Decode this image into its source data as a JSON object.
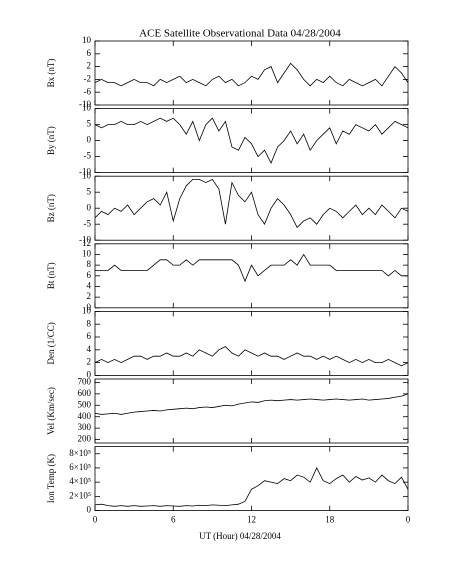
{
  "chart_data": {
    "type": "line",
    "title": "ACE Satellite Observational Data   04/28/2004",
    "x_label": "UT (Hour)   04/28/2004",
    "color": "#000000",
    "x": [
      0,
      0.5,
      1,
      1.5,
      2,
      2.5,
      3,
      3.5,
      4,
      4.5,
      5,
      5.5,
      6,
      6.5,
      7,
      7.5,
      8,
      8.5,
      9,
      9.5,
      10,
      10.5,
      11,
      11.5,
      12,
      12.5,
      13,
      13.5,
      14,
      14.5,
      15,
      15.5,
      16,
      16.5,
      17,
      17.5,
      18,
      18.5,
      19,
      19.5,
      20,
      20.5,
      21,
      21.5,
      22,
      22.5,
      23,
      23.5,
      24
    ],
    "xlim": [
      0,
      24
    ],
    "xticks": [
      0,
      6,
      12,
      18,
      {
        "value": 24,
        "label": "0"
      }
    ],
    "panels": [
      {
        "ylabel": "Bx (nT)",
        "ylim": [
          -10,
          10
        ],
        "yticks": [
          -10,
          -6,
          -2,
          2,
          6,
          10
        ],
        "values": [
          -3,
          -2,
          -3,
          -3,
          -4,
          -3,
          -2,
          -3,
          -3,
          -4,
          -2,
          -3,
          -2,
          -1,
          -3,
          -2,
          -3,
          -4,
          -2,
          -1,
          -3,
          -2,
          -4,
          -3,
          -1,
          -2,
          1,
          2,
          -3,
          0,
          3,
          1,
          -2,
          -4,
          -2,
          -3,
          -1,
          -3,
          -4,
          -2,
          -3,
          -4,
          -3,
          -2,
          -4,
          -1,
          2,
          0,
          -3
        ]
      },
      {
        "ylabel": "By (nT)",
        "ylim": [
          -10,
          10
        ],
        "yticks": [
          -10,
          -5,
          0,
          5,
          10
        ],
        "values": [
          5,
          4,
          5,
          5,
          6,
          5,
          5,
          6,
          5,
          6,
          7,
          6,
          7,
          5,
          2,
          6,
          0,
          5,
          7,
          3,
          6,
          -2,
          -3,
          1,
          -1,
          -5,
          -3,
          -7,
          -2,
          0,
          3,
          -1,
          2,
          -3,
          0,
          2,
          4,
          -1,
          3,
          2,
          5,
          4,
          3,
          5,
          2,
          4,
          6,
          5,
          4
        ]
      },
      {
        "ylabel": "Bz (nT)",
        "ylim": [
          -10,
          10
        ],
        "yticks": [
          -10,
          -5,
          0,
          5,
          10
        ],
        "values": [
          -3,
          -1,
          -2,
          0,
          -1,
          1,
          -2,
          0,
          2,
          3,
          1,
          5,
          -4,
          3,
          7,
          9,
          9,
          8,
          9,
          6,
          -5,
          8,
          4,
          2,
          5,
          -2,
          -5,
          0,
          3,
          1,
          -2,
          -6,
          -4,
          -3,
          -5,
          -2,
          0,
          -1,
          -3,
          -1,
          1,
          -2,
          0,
          -2,
          1,
          -1,
          -3,
          0,
          -1
        ]
      },
      {
        "ylabel": "Bt (nT)",
        "ylim": [
          0,
          12
        ],
        "yticks": [
          0,
          2,
          4,
          6,
          8,
          10,
          12
        ],
        "values": [
          7,
          7,
          7,
          8,
          7,
          7,
          7,
          7,
          7,
          8,
          9,
          9,
          8,
          8,
          9,
          8,
          9,
          9,
          9,
          9,
          9,
          9,
          8,
          5,
          8,
          6,
          7,
          8,
          8,
          8,
          9,
          8,
          10,
          8,
          8,
          8,
          8,
          7,
          7,
          7,
          7,
          7,
          7,
          7,
          7,
          6,
          7,
          6,
          6
        ]
      },
      {
        "ylabel": "Den (1/CC)",
        "ylim": [
          0,
          10
        ],
        "yticks": [
          0,
          2,
          4,
          6,
          8,
          10
        ],
        "values": [
          2,
          2.5,
          2,
          2.5,
          2,
          2.5,
          3,
          3,
          2.5,
          3,
          3,
          3.5,
          3,
          3,
          3.5,
          3,
          4,
          3.5,
          3,
          4,
          4.5,
          3.5,
          3,
          4,
          3.5,
          3,
          3.5,
          3,
          3,
          2.5,
          3,
          3.5,
          3,
          3,
          2.5,
          3,
          2.5,
          3,
          2.5,
          2,
          2.5,
          2,
          2.5,
          2,
          2,
          2.5,
          2,
          1.5,
          2
        ]
      },
      {
        "ylabel": "Vel (Km/sec)",
        "ylim": [
          170,
          730
        ],
        "yticks": [
          200,
          300,
          400,
          500,
          600,
          700
        ],
        "values": [
          430,
          420,
          425,
          430,
          420,
          430,
          440,
          445,
          450,
          455,
          450,
          460,
          465,
          470,
          475,
          470,
          480,
          485,
          480,
          490,
          500,
          495,
          510,
          520,
          530,
          525,
          540,
          545,
          540,
          545,
          550,
          545,
          550,
          555,
          550,
          545,
          550,
          555,
          550,
          545,
          550,
          555,
          545,
          550,
          555,
          560,
          570,
          580,
          600
        ]
      },
      {
        "ylabel": "Ion Temp (K)",
        "ylim": [
          0,
          900000
        ],
        "yticks": [
          0,
          {
            "value": 200000,
            "label": "2×10⁵"
          },
          {
            "value": 400000,
            "label": "4×10⁵"
          },
          {
            "value": 600000,
            "label": "6×10⁵"
          },
          {
            "value": 800000,
            "label": "8×10⁵"
          }
        ],
        "values": [
          80000,
          90000,
          70000,
          60000,
          70000,
          60000,
          70000,
          60000,
          65000,
          70000,
          60000,
          70000,
          65000,
          60000,
          70000,
          65000,
          75000,
          70000,
          80000,
          75000,
          70000,
          80000,
          90000,
          130000,
          300000,
          350000,
          420000,
          400000,
          380000,
          450000,
          420000,
          500000,
          470000,
          400000,
          600000,
          420000,
          380000,
          450000,
          500000,
          400000,
          480000,
          430000,
          460000,
          400000,
          500000,
          420000,
          380000,
          470000,
          300000
        ]
      }
    ]
  }
}
